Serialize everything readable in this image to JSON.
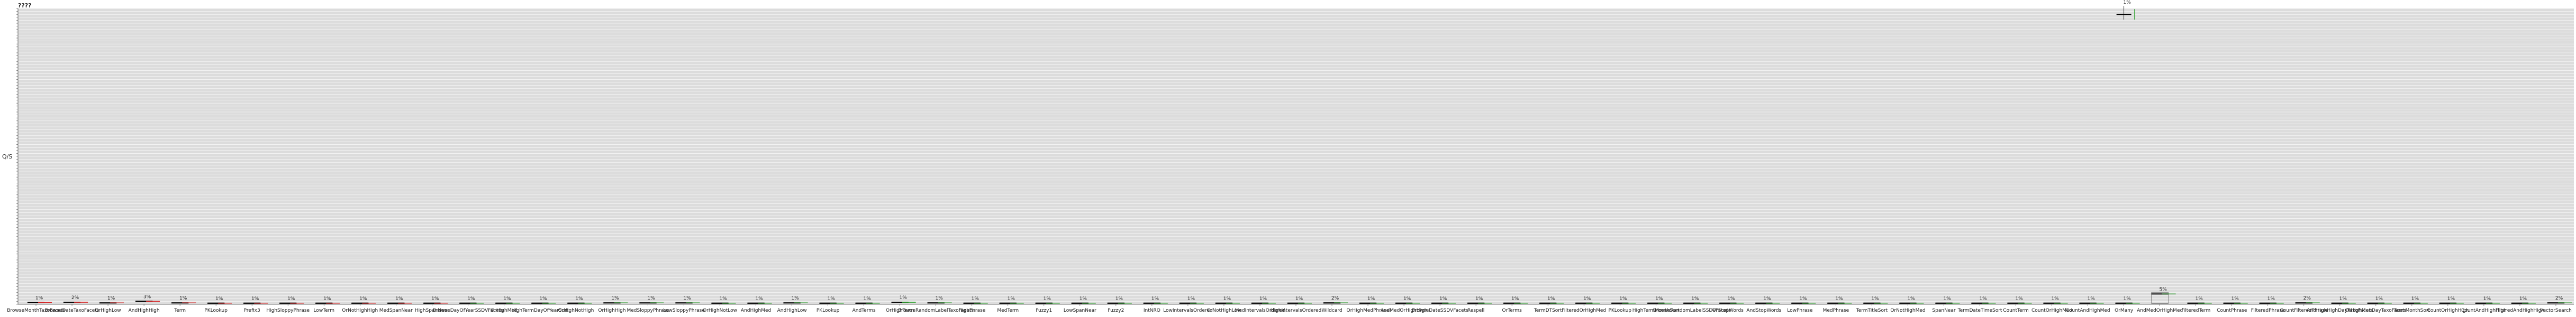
{
  "chart_data": {
    "type": "box",
    "title": "????",
    "ylabel": "Q/S",
    "colors": {
      "plot_bg": "#dcdcdc",
      "grid": "#ffffff",
      "median": "#000000",
      "better": "#2ca02c",
      "worse": "#d62728"
    },
    "ylim": [
      0,
      1
    ],
    "categories": [
      "BrowseMonthTaxoFacets",
      "BrowseDateTaxoFacets",
      "OrHighLow",
      "AndHighHigh",
      "Term",
      "PKLookup",
      "Prefix3",
      "HighSloppyPhrase",
      "LowTerm",
      "OrNotHighHigh",
      "MedSpanNear",
      "HighSpanNear",
      "BrowseDayOfYearSSDVFacets",
      "OrHighMed",
      "HighTermDayOfYearSort",
      "OrHighNotHigh",
      "OrHighHigh",
      "MedSloppyPhrase",
      "LowSloppyPhrase",
      "OrHighNotLow",
      "AndHighMed",
      "AndHighLow",
      "PKLookup",
      "AndTerms",
      "OrHighTerm",
      "BrowseRandomLabelTaxoFacets",
      "HighPhrase",
      "MedTerm",
      "Fuzzy1",
      "LowSpanNear",
      "Fuzzy2",
      "IntNRQ",
      "LowIntervalsOrdered",
      "OrNotHighLow",
      "MedIntervalsOrdered",
      "HighIntervalsOrdered",
      "Wildcard",
      "OrHighMedPhrase",
      "AndMedOrHighHigh",
      "BrowseDateSSDVFacets",
      "Respell",
      "OrTerms",
      "TermDTSort",
      "FilteredOrHighMed",
      "PKLookup",
      "HighTermMonthSort",
      "BrowseRandomLabelSSDVFacets",
      "OrStopWords",
      "AndStopWords",
      "LowPhrase",
      "MedPhrase",
      "TermTitleSort",
      "OrNotHighMed",
      "SpanNear",
      "TermDateTimeSort",
      "CountTerm",
      "CountOrHighMed",
      "CountAndHighMed",
      "OrMany",
      "AndMedOrHighMed",
      "FilteredTerm",
      "CountPhrase",
      "FilteredPhrase",
      "CountFilteredPhrase",
      "AndHighHighDayTaxoFacets",
      "OrHighMedDayTaxoFacets",
      "TermMonthSort",
      "CountOrHighHigh",
      "CountAndHighHigh",
      "FilteredAndHighHigh",
      "VectorSearch"
    ],
    "series": [
      {
        "kind": "q1",
        "values": [
          0.005,
          0.006,
          0.004,
          0.008,
          0.004,
          0.003,
          0.003,
          0.003,
          0.003,
          0.003,
          0.003,
          0.003,
          0.003,
          0.003,
          0.003,
          0.003,
          0.004,
          0.004,
          0.004,
          0.003,
          0.003,
          0.004,
          0.003,
          0.003,
          0.006,
          0.004,
          0.003,
          0.003,
          0.003,
          0.003,
          0.003,
          0.003,
          0.003,
          0.003,
          0.003,
          0.003,
          0.003,
          0.003,
          0.003,
          0.003,
          0.003,
          0.003,
          0.003,
          0.003,
          0.003,
          0.003,
          0.003,
          0.003,
          0.003,
          0.003,
          0.003,
          0.003,
          0.003,
          0.003,
          0.003,
          0.003,
          0.003,
          0.003,
          0.003,
          0.003,
          0.004,
          0.003,
          0.003,
          0.003,
          0.003,
          0.003,
          0.003,
          0.003,
          0.003,
          0.003,
          0.004
        ]
      },
      {
        "kind": "median",
        "values": [
          0.006,
          0.007,
          0.005,
          0.01,
          0.005,
          0.004,
          0.004,
          0.004,
          0.004,
          0.004,
          0.004,
          0.004,
          0.004,
          0.004,
          0.004,
          0.004,
          0.005,
          0.005,
          0.005,
          0.004,
          0.004,
          0.005,
          0.004,
          0.004,
          0.007,
          0.005,
          0.004,
          0.004,
          0.004,
          0.004,
          0.004,
          0.004,
          0.004,
          0.004,
          0.004,
          0.004,
          0.005,
          0.004,
          0.004,
          0.004,
          0.004,
          0.004,
          0.004,
          0.004,
          0.004,
          0.004,
          0.004,
          0.004,
          0.004,
          0.004,
          0.004,
          0.004,
          0.004,
          0.004,
          0.004,
          0.004,
          0.004,
          0.004,
          0.004,
          0.035,
          0.004,
          0.004,
          0.004,
          0.005,
          0.004,
          0.004,
          0.004,
          0.004,
          0.004,
          0.004,
          0.005
        ]
      },
      {
        "kind": "q3",
        "values": [
          0.007,
          0.008,
          0.006,
          0.012,
          0.006,
          0.005,
          0.005,
          0.005,
          0.005,
          0.005,
          0.005,
          0.005,
          0.005,
          0.005,
          0.005,
          0.005,
          0.006,
          0.006,
          0.006,
          0.005,
          0.005,
          0.006,
          0.005,
          0.005,
          0.008,
          0.006,
          0.005,
          0.005,
          0.005,
          0.005,
          0.005,
          0.005,
          0.005,
          0.005,
          0.005,
          0.005,
          0.006,
          0.005,
          0.005,
          0.005,
          0.005,
          0.005,
          0.005,
          0.005,
          0.005,
          0.005,
          0.005,
          0.005,
          0.005,
          0.005,
          0.005,
          0.005,
          0.005,
          0.005,
          0.005,
          0.005,
          0.005,
          0.005,
          0.005,
          0.04,
          0.005,
          0.005,
          0.005,
          0.006,
          0.005,
          0.005,
          0.005,
          0.005,
          0.005,
          0.005,
          0.006
        ]
      }
    ],
    "outlier": {
      "category_index": 58,
      "value": 0.98,
      "label": "1%"
    },
    "pct_labels": [
      "1%",
      "2%",
      "1%",
      "3%",
      "1%",
      "1%",
      "1%",
      "1%",
      "1%",
      "1%",
      "1%",
      "1%",
      "1%",
      "1%",
      "1%",
      "1%",
      "1%",
      "1%",
      "1%",
      "1%",
      "1%",
      "1%",
      "1%",
      "1%",
      "1%",
      "1%",
      "1%",
      "1%",
      "1%",
      "1%",
      "1%",
      "1%",
      "1%",
      "1%",
      "1%",
      "1%",
      "2%",
      "1%",
      "1%",
      "1%",
      "1%",
      "1%",
      "1%",
      "1%",
      "1%",
      "1%",
      "1%",
      "1%",
      "1%",
      "1%",
      "1%",
      "1%",
      "1%",
      "1%",
      "1%",
      "1%",
      "1%",
      "1%",
      "1%",
      "5%",
      "1%",
      "1%",
      "1%",
      "2%",
      "1%",
      "1%",
      "1%",
      "1%",
      "1%",
      "1%",
      "2%"
    ],
    "marker_color": [
      "worse",
      "worse",
      "worse",
      "worse",
      "worse",
      "worse",
      "worse",
      "worse",
      "worse",
      "worse",
      "worse",
      "worse",
      "better",
      "better",
      "better",
      "better",
      "better",
      "better",
      "better",
      "better",
      "better",
      "better",
      "better",
      "better",
      "better",
      "better",
      "better",
      "better",
      "better",
      "better",
      "better",
      "better",
      "better",
      "better",
      "better",
      "better",
      "better",
      "better",
      "better",
      "better",
      "better",
      "better",
      "better",
      "better",
      "better",
      "better",
      "better",
      "better",
      "better",
      "better",
      "better",
      "better",
      "better",
      "better",
      "better",
      "better",
      "better",
      "better",
      "better",
      "better",
      "better",
      "better",
      "better",
      "better",
      "better",
      "better",
      "better",
      "better",
      "better",
      "better",
      "better"
    ],
    "ytick_count": 100,
    "grid": true,
    "legend": "none"
  }
}
